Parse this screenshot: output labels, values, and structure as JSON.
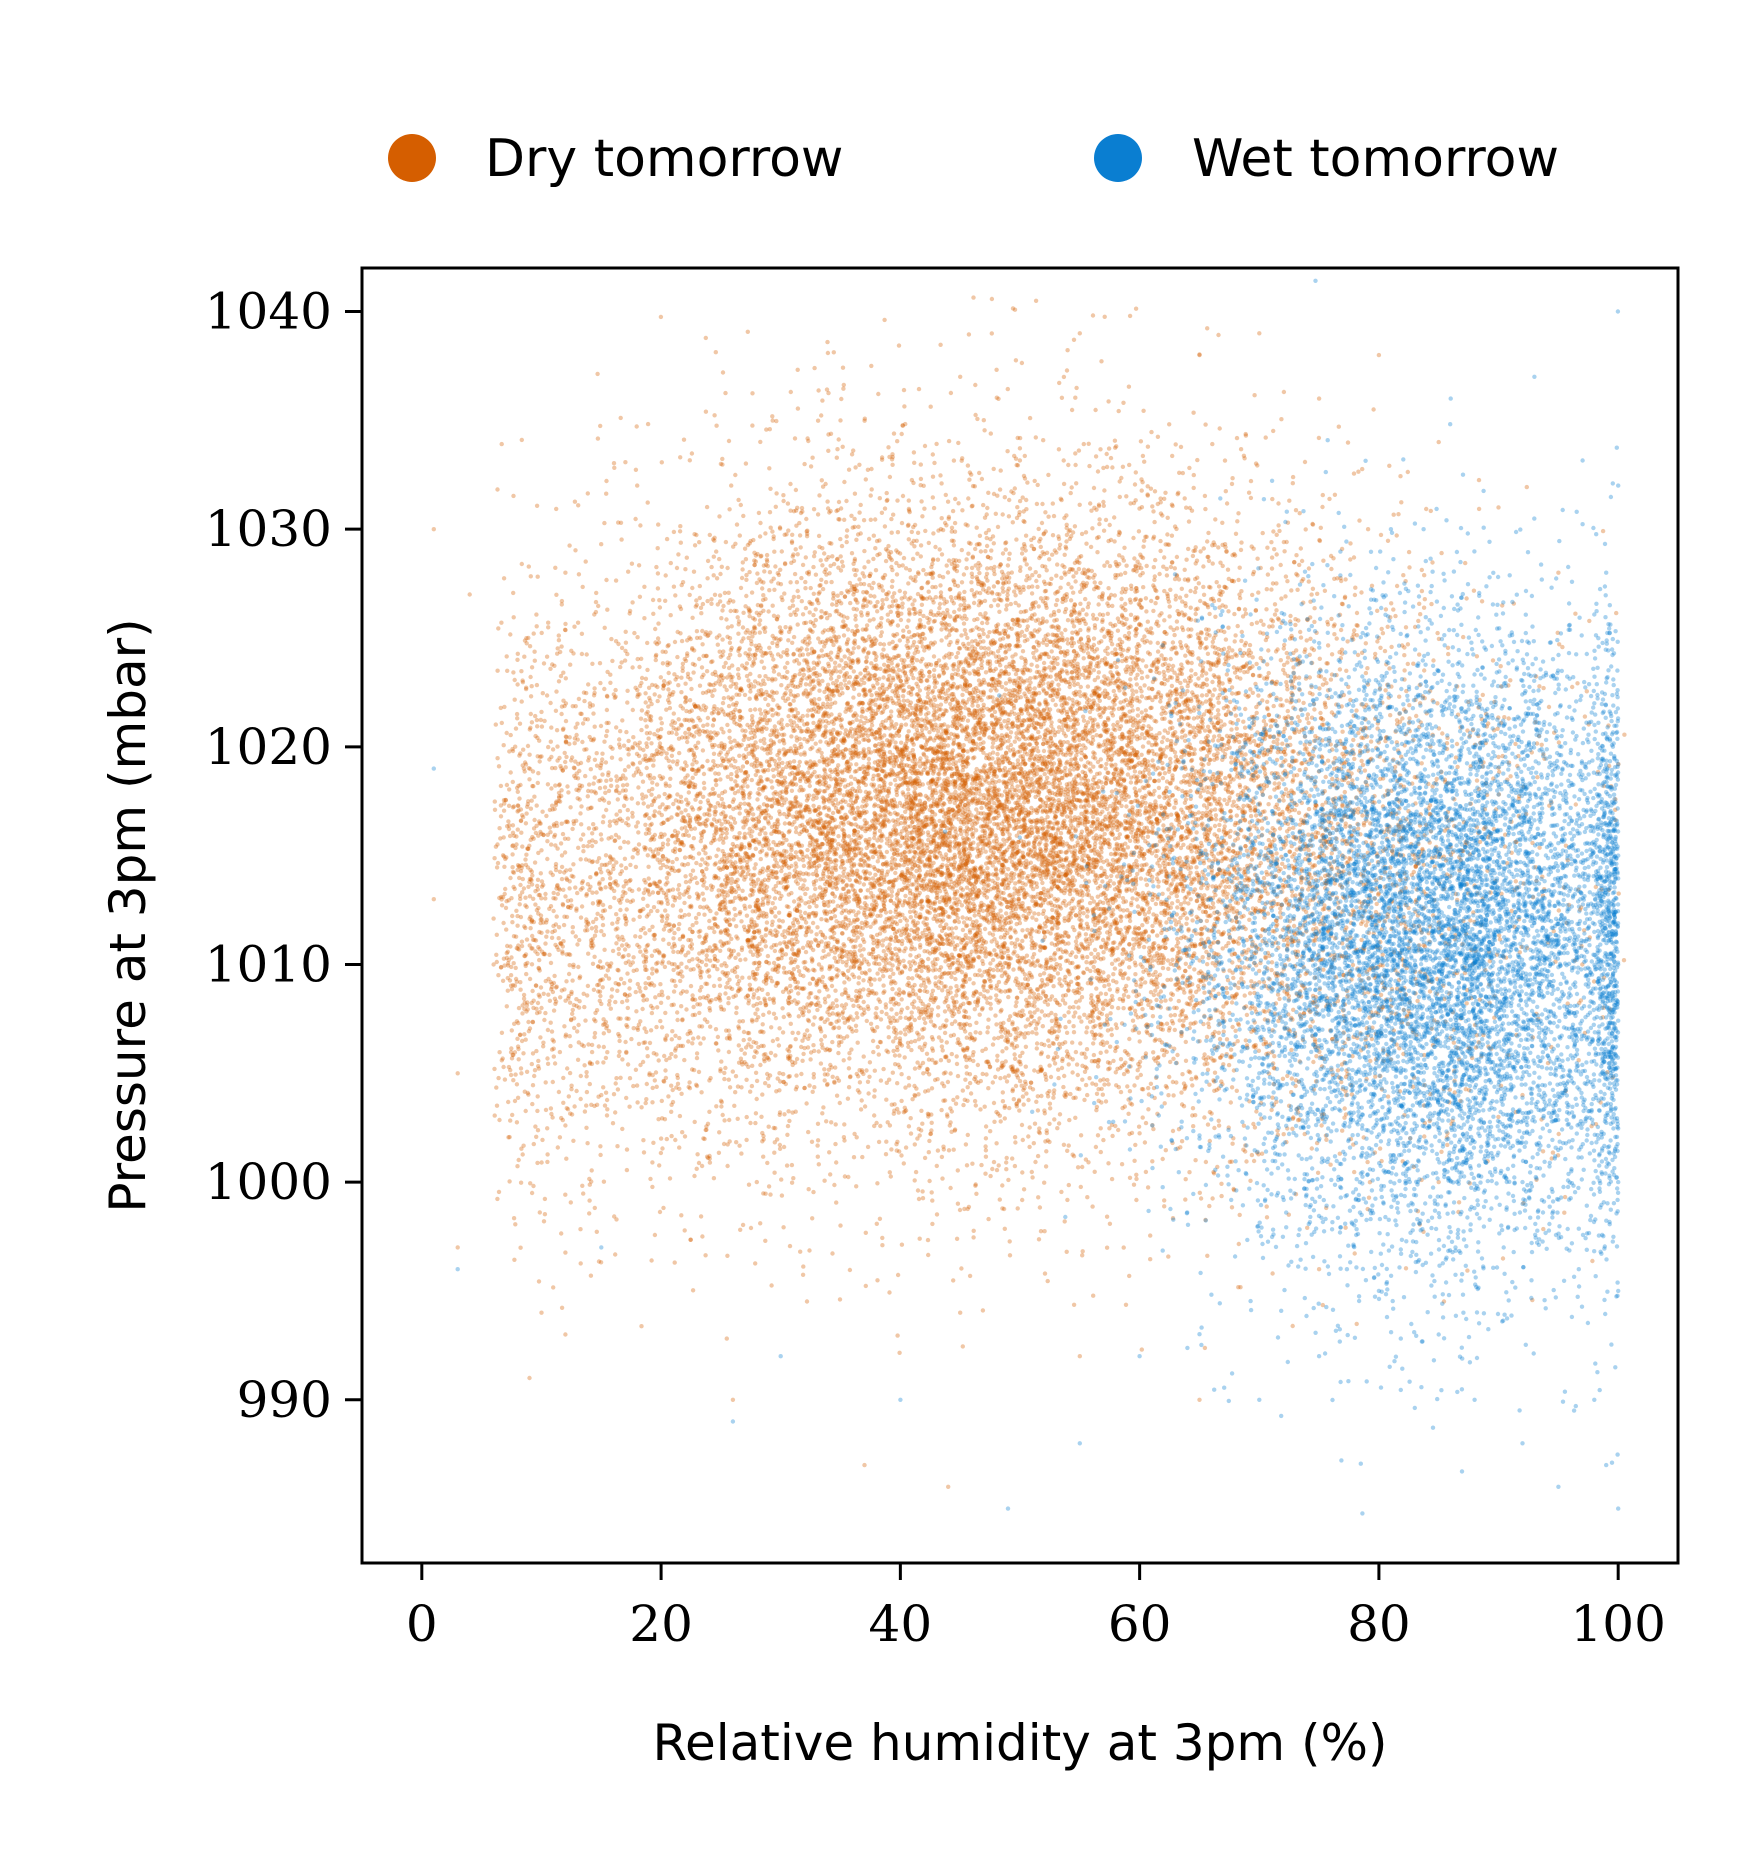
{
  "chart_data": {
    "type": "scatter",
    "xlabel": "Relative humidity at 3pm (%)",
    "ylabel": "Pressure at 3pm (mbar)",
    "xlim": [
      -5,
      105
    ],
    "ylim": [
      982.5,
      1042
    ],
    "xticks": [
      0,
      20,
      40,
      60,
      80,
      100
    ],
    "yticks": [
      990,
      1000,
      1010,
      1020,
      1030,
      1040
    ],
    "grid": false,
    "legend": {
      "placement": "top-outside",
      "columns": 2
    },
    "series": [
      {
        "name": "Dry tomorrow",
        "color": "#d55e00",
        "alpha": 0.35,
        "distribution": {
          "x_mean": 46,
          "x_sd": 19,
          "y_mean": 1017,
          "y_sd": 7
        },
        "points_sample": [
          [
            1,
            1030
          ],
          [
            4,
            1027
          ],
          [
            8,
            1024
          ],
          [
            12,
            1028
          ],
          [
            18,
            1032
          ],
          [
            25,
            1033
          ],
          [
            35,
            1035
          ],
          [
            45,
            1037
          ],
          [
            55,
            1039
          ],
          [
            65,
            1038
          ],
          [
            70,
            1039
          ],
          [
            75,
            1036
          ],
          [
            80,
            1038
          ],
          [
            85,
            1034
          ],
          [
            90,
            1031
          ],
          [
            95,
            1028
          ],
          [
            1,
            1013
          ],
          [
            3,
            1005
          ],
          [
            6,
            1010
          ],
          [
            10,
            1008
          ],
          [
            15,
            1004
          ],
          [
            20,
            1002
          ],
          [
            28,
            1000
          ],
          [
            35,
            998
          ],
          [
            45,
            994
          ],
          [
            55,
            992
          ],
          [
            65,
            990
          ],
          [
            75,
            996
          ],
          [
            85,
            1000
          ],
          [
            92,
            1004
          ],
          [
            97,
            1010
          ],
          [
            3,
            997
          ],
          [
            10,
            994
          ],
          [
            12,
            993
          ],
          [
            9,
            991
          ],
          [
            26,
            990
          ],
          [
            44,
            986
          ],
          [
            37,
            987
          ],
          [
            30,
            1015
          ],
          [
            50,
            1020
          ],
          [
            60,
            1018
          ],
          [
            40,
            1012
          ],
          [
            20,
            1016
          ],
          [
            70,
            1015
          ],
          [
            80,
            1012
          ],
          [
            65,
            1025
          ]
        ]
      },
      {
        "name": "Wet tomorrow",
        "color": "#0a7ed1",
        "alpha": 0.35,
        "distribution": {
          "x_mean": 85,
          "x_sd": 10,
          "y_mean": 1011,
          "y_sd": 7
        },
        "points_sample": [
          [
            100,
            1032
          ],
          [
            99,
            1028
          ],
          [
            98,
            1022
          ],
          [
            100,
            1015
          ],
          [
            100,
            1010
          ],
          [
            99,
            1005
          ],
          [
            100,
            1000
          ],
          [
            100,
            995
          ],
          [
            98,
            990
          ],
          [
            99,
            987
          ],
          [
            100,
            985
          ],
          [
            95,
            986
          ],
          [
            92,
            988
          ],
          [
            88,
            990
          ],
          [
            85,
            993
          ],
          [
            80,
            995
          ],
          [
            75,
            992
          ],
          [
            70,
            990
          ],
          [
            60,
            992
          ],
          [
            55,
            988
          ],
          [
            49,
            985
          ],
          [
            40,
            990
          ],
          [
            30,
            992
          ],
          [
            26,
            989
          ],
          [
            3,
            996
          ],
          [
            1,
            1019
          ],
          [
            15,
            997
          ],
          [
            86,
            1036
          ],
          [
            93,
            1037
          ],
          [
            81,
            1030
          ],
          [
            90,
            1015
          ],
          [
            85,
            1010
          ],
          [
            95,
            1012
          ],
          [
            88,
            1020
          ],
          [
            78,
            1008
          ],
          [
            82,
            1003
          ],
          [
            92,
            1000
          ],
          [
            97,
            1018
          ],
          [
            70,
            1005
          ],
          [
            65,
            1002
          ]
        ]
      }
    ]
  }
}
